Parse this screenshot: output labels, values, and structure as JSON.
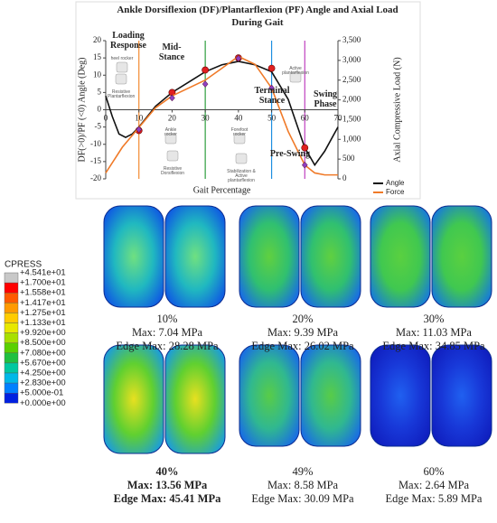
{
  "chart_data": {
    "type": "line",
    "title": "Ankle Dorsiflexion (DF)/Plantarflexion (PF) Angle and Axial Load During Gait",
    "x_label": "Gait Percentage",
    "y_label": "DF(>0)/PF (<0) Angle (Deg)",
    "y2_label": "Axial Compressive Load (N)",
    "xlim": [
      0,
      70
    ],
    "xticks": [
      0,
      10,
      20,
      30,
      40,
      50,
      60,
      70
    ],
    "ylim": [
      -20,
      20
    ],
    "yticks": [
      -20,
      -15,
      -10,
      -5,
      0,
      5,
      10,
      15,
      20
    ],
    "y2lim": [
      0,
      3500
    ],
    "y2ticks": [
      0,
      500,
      {
        "value": 1000,
        "label": "1,000"
      },
      {
        "value": 1500,
        "label": "1,500"
      },
      {
        "value": 2000,
        "label": "2,000"
      },
      {
        "value": 2500,
        "label": "2,500"
      },
      {
        "value": 3000,
        "label": "3,000"
      },
      {
        "value": 3500,
        "label": "3,500"
      }
    ],
    "legend": "bottom-right",
    "series": [
      {
        "name": "Angle",
        "color": "#111111",
        "x": [
          0,
          2,
          4,
          6,
          8,
          10,
          15,
          20,
          25,
          30,
          35,
          40,
          45,
          50,
          55,
          60,
          63,
          66,
          70
        ],
        "values": [
          4,
          -2,
          -7,
          -8,
          -7,
          -5,
          1,
          5,
          8,
          11,
          13,
          14,
          13,
          11,
          3,
          -11,
          -16,
          -12,
          -5
        ],
        "markers": {
          "x": [
            10,
            20,
            30,
            40,
            50,
            60
          ],
          "values": [
            -6,
            5,
            11.5,
            15,
            12,
            -11
          ],
          "color": "#e02020",
          "shape": "circle"
        }
      },
      {
        "name": "Force",
        "color": "#f07a28",
        "axis": "y2",
        "x": [
          0,
          5,
          10,
          15,
          20,
          25,
          30,
          35,
          40,
          45,
          50,
          55,
          60,
          63,
          66,
          70
        ],
        "values": [
          150,
          800,
          1300,
          1800,
          2100,
          2300,
          2500,
          2800,
          3100,
          2900,
          2300,
          1200,
          350,
          150,
          100,
          100
        ],
        "markers": {
          "x": [
            10,
            20,
            30,
            40,
            50,
            60
          ],
          "values": [
            1250,
            2050,
            2400,
            3050,
            2300,
            350
          ],
          "color": "#9040c0",
          "shape": "diamond"
        }
      }
    ],
    "phase_lines": [
      {
        "x": 10,
        "color": "#f28a30"
      },
      {
        "x": 30,
        "color": "#2e9e3e"
      },
      {
        "x": 50,
        "color": "#1e8fe0"
      },
      {
        "x": 60,
        "color": "#c040c0"
      }
    ],
    "annotations": [
      "Loading Response",
      "Mid-Stance",
      "Terminal Stance",
      "Pre-Swing",
      "Swing Phase"
    ],
    "icon_labels": [
      "heel rocker",
      "Resistive Plantarflexion",
      "Ankle rocker",
      "Resistive Dorsiflexion",
      "Forefoot rocker",
      "Stabilization & Active plantarflexion",
      "Active plantarflexion"
    ]
  },
  "contour_legend": {
    "title": "CPRESS",
    "labels": [
      "+4.541e+01",
      "+1.700e+01",
      "+1.558e+01",
      "+1.417e+01",
      "+1.275e+01",
      "+1.133e+01",
      "+9.920e+00",
      "+8.500e+00",
      "+7.080e+00",
      "+5.670e+00",
      "+4.250e+00",
      "+2.830e+00",
      "+5.000e-01",
      "+0.000e+00"
    ],
    "colors": [
      "#c8c8c8",
      "#ff0000",
      "#ff5a00",
      "#ff9a00",
      "#ffcc00",
      "#e8e800",
      "#a8e000",
      "#5ad000",
      "#20c040",
      "#00c8a0",
      "#00b8e8",
      "#0080ff",
      "#0020e0"
    ]
  },
  "panels": [
    {
      "percent": "10%",
      "max": "Max: 7.04 MPa",
      "edge_max": "Edge Max: 28.28 MPa"
    },
    {
      "percent": "20%",
      "max": "Max: 9.39 MPa",
      "edge_max": "Edge Max: 26.02 MPa"
    },
    {
      "percent": "30%",
      "max": "Max: 11.03 MPa",
      "edge_max": "Edge Max: 34.85 MPa"
    },
    {
      "percent": "40%",
      "max": "Max: 13.56 MPa",
      "edge_max": "Edge Max: 45.41 MPa",
      "bold": true
    },
    {
      "percent": "49%",
      "max": "Max: 8.58 MPa",
      "edge_max": "Edge Max: 30.09 MPa"
    },
    {
      "percent": "60%",
      "max": "Max: 2.64 MPa",
      "edge_max": "Edge Max: 5.89 MPa"
    }
  ]
}
